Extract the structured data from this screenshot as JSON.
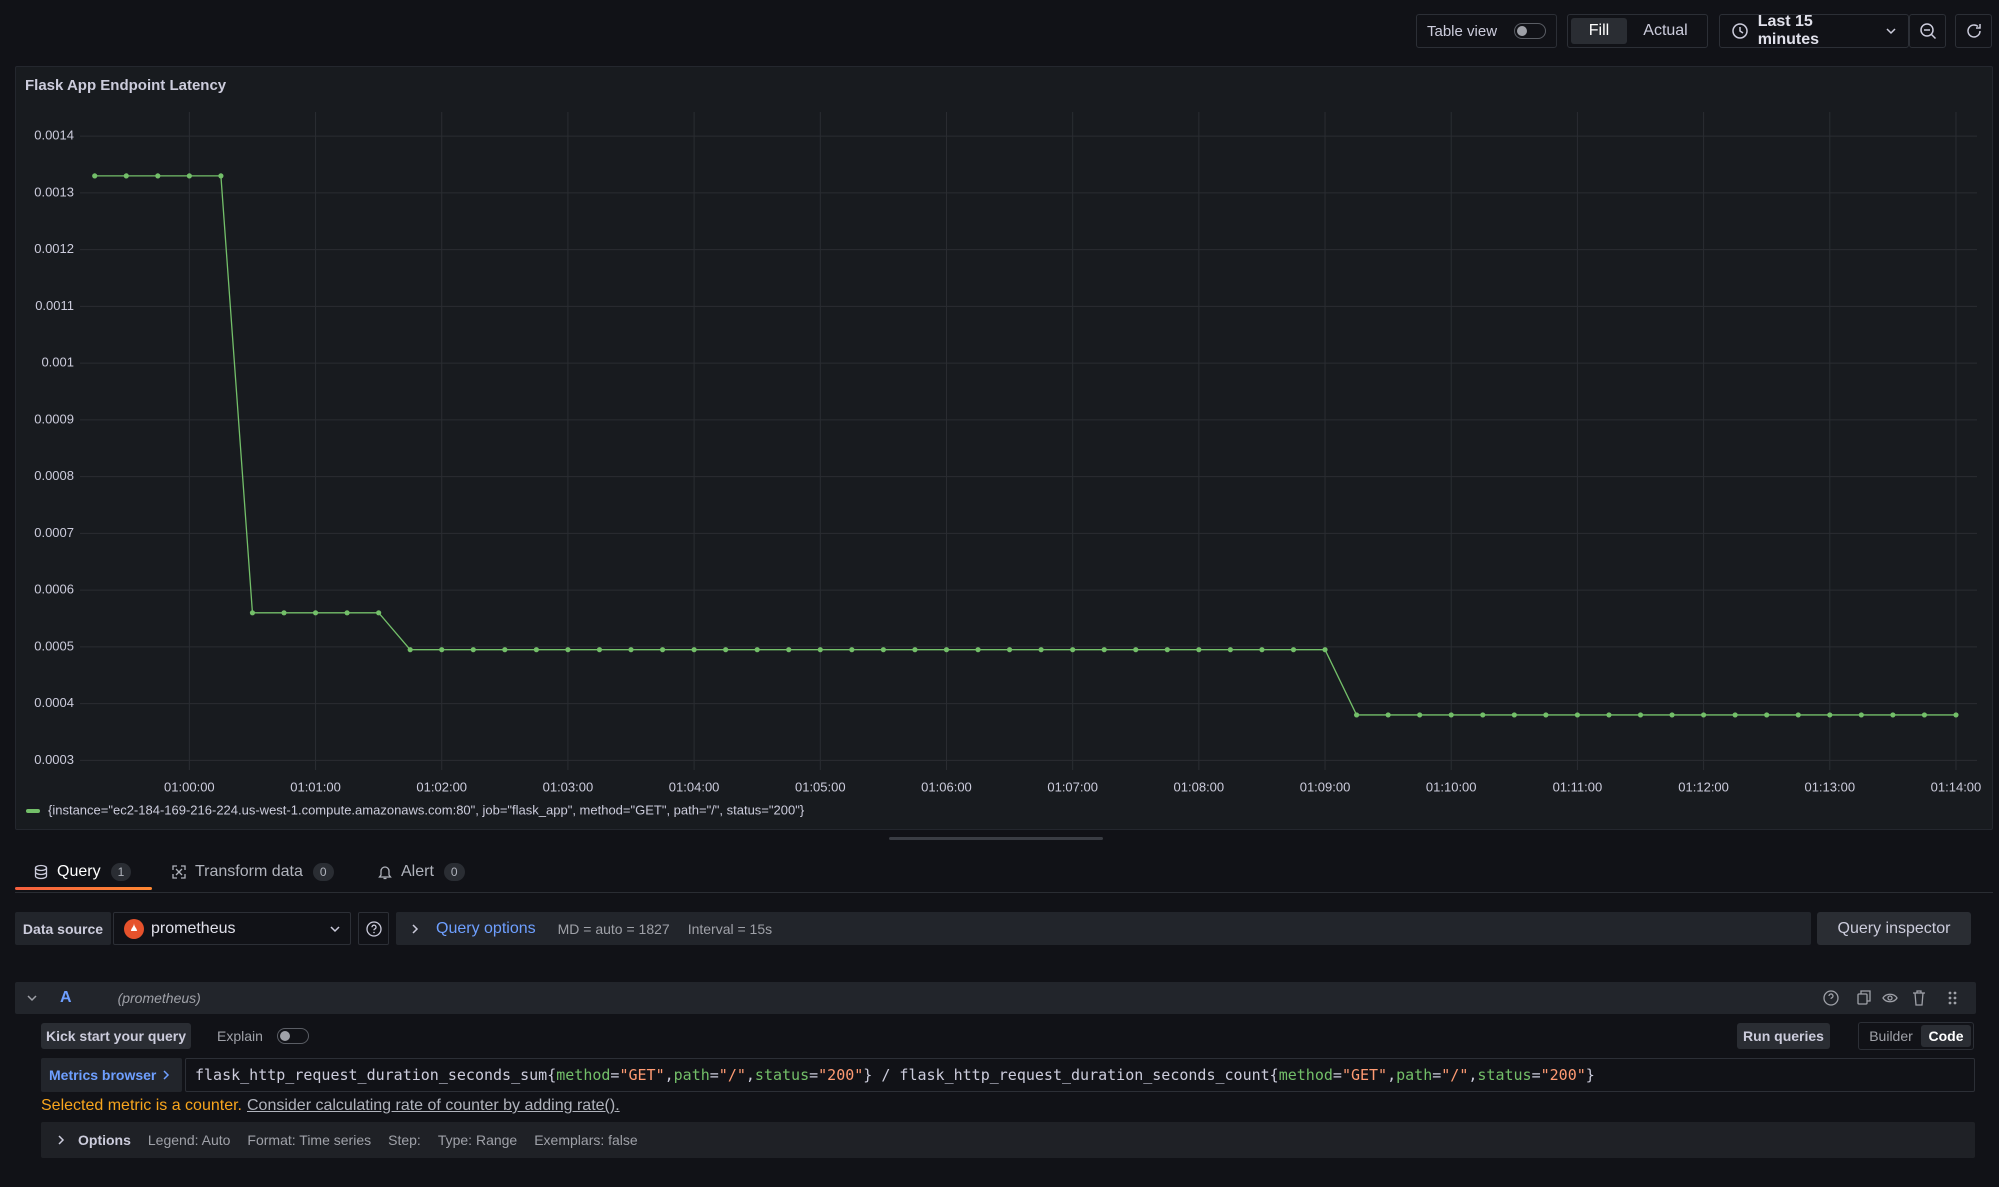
{
  "toolbar": {
    "table_view": "Table view",
    "fill": "Fill",
    "actual": "Actual",
    "time_range": "Last 15 minutes"
  },
  "chart_data": {
    "type": "line",
    "title": "Flask App Endpoint Latency",
    "x": [
      "00:59:15",
      "00:59:30",
      "00:59:45",
      "01:00:00",
      "01:00:15",
      "01:00:30",
      "01:00:45",
      "01:01:00",
      "01:01:15",
      "01:01:30",
      "01:01:45",
      "01:02:00",
      "01:02:15",
      "01:02:30",
      "01:02:45",
      "01:03:00",
      "01:03:15",
      "01:03:30",
      "01:03:45",
      "01:04:00",
      "01:04:15",
      "01:04:30",
      "01:04:45",
      "01:05:00",
      "01:05:15",
      "01:05:30",
      "01:05:45",
      "01:06:00",
      "01:06:15",
      "01:06:30",
      "01:06:45",
      "01:07:00",
      "01:07:15",
      "01:07:30",
      "01:07:45",
      "01:08:00",
      "01:08:15",
      "01:08:30",
      "01:08:45",
      "01:09:00",
      "01:09:15",
      "01:09:30",
      "01:09:45",
      "01:10:00",
      "01:10:15",
      "01:10:30",
      "01:10:45",
      "01:11:00",
      "01:11:15",
      "01:11:30",
      "01:11:45",
      "01:12:00",
      "01:12:15",
      "01:12:30",
      "01:12:45",
      "01:13:00",
      "01:13:15",
      "01:13:30",
      "01:13:45",
      "01:14:00"
    ],
    "series": [
      {
        "name": "{instance=\"ec2-184-169-216-224.us-west-1.compute.amazonaws.com:80\", job=\"flask_app\", method=\"GET\", path=\"/\", status=\"200\"}",
        "color": "#73bf69",
        "values": [
          0.00133,
          0.00133,
          0.00133,
          0.00133,
          0.00133,
          0.00056,
          0.00056,
          0.00056,
          0.00056,
          0.00056,
          0.000495,
          0.000495,
          0.000495,
          0.000495,
          0.000495,
          0.000495,
          0.000495,
          0.000495,
          0.000495,
          0.000495,
          0.000495,
          0.000495,
          0.000495,
          0.000495,
          0.000495,
          0.000495,
          0.000495,
          0.000495,
          0.000495,
          0.000495,
          0.000495,
          0.000495,
          0.000495,
          0.000495,
          0.000495,
          0.000495,
          0.000495,
          0.000495,
          0.000495,
          0.000495,
          0.00038,
          0.00038,
          0.00038,
          0.00038,
          0.00038,
          0.00038,
          0.00038,
          0.00038,
          0.00038,
          0.00038,
          0.00038,
          0.00038,
          0.00038,
          0.00038,
          0.00038,
          0.00038,
          0.00038,
          0.00038,
          0.00038,
          0.00038
        ]
      }
    ],
    "xlim": [
      "00:59:08",
      "01:14:10"
    ],
    "xticks": [
      "01:00:00",
      "01:01:00",
      "01:02:00",
      "01:03:00",
      "01:04:00",
      "01:05:00",
      "01:06:00",
      "01:07:00",
      "01:08:00",
      "01:09:00",
      "01:10:00",
      "01:11:00",
      "01:12:00",
      "01:13:00",
      "01:14:00"
    ],
    "ylim": [
      0.00029,
      0.001425
    ],
    "yticks": [
      0.0003,
      0.0004,
      0.0005,
      0.0006,
      0.0007,
      0.0008,
      0.0009,
      0.001,
      0.0011,
      0.0012,
      0.0013,
      0.0014
    ],
    "grid": true
  },
  "tabs": [
    {
      "label": "Query",
      "count": 1
    },
    {
      "label": "Transform data",
      "count": 0
    },
    {
      "label": "Alert",
      "count": 0
    }
  ],
  "data_source": {
    "label": "Data source",
    "name": "prometheus",
    "query_options": "Query options",
    "md": "MD = auto = 1827",
    "interval": "Interval = 15s",
    "inspector": "Query inspector"
  },
  "query": {
    "ref": "A",
    "datasource": "(prometheus)",
    "kick_start": "Kick start your query",
    "explain": "Explain",
    "run": "Run queries",
    "builder": "Builder",
    "code": "Code",
    "metrics_browser": "Metrics browser",
    "expression": [
      {
        "text": "flask_http_request_duration_seconds_sum{",
        "color": "#ccccdc"
      },
      {
        "text": "method",
        "color": "#73bf69"
      },
      {
        "text": "=",
        "color": "#ccccdc"
      },
      {
        "text": "\"GET\"",
        "color": "#ff9b73"
      },
      {
        "text": ",",
        "color": "#ccccdc"
      },
      {
        "text": "path",
        "color": "#73bf69"
      },
      {
        "text": "=",
        "color": "#ccccdc"
      },
      {
        "text": "\"/\"",
        "color": "#ff9b73"
      },
      {
        "text": ",",
        "color": "#ccccdc"
      },
      {
        "text": "status",
        "color": "#73bf69"
      },
      {
        "text": "=",
        "color": "#ccccdc"
      },
      {
        "text": "\"200\"",
        "color": "#ff9b73"
      },
      {
        "text": "} / flask_http_request_duration_seconds_count{",
        "color": "#ccccdc"
      },
      {
        "text": "method",
        "color": "#73bf69"
      },
      {
        "text": "=",
        "color": "#ccccdc"
      },
      {
        "text": "\"GET\"",
        "color": "#ff9b73"
      },
      {
        "text": ",",
        "color": "#ccccdc"
      },
      {
        "text": "path",
        "color": "#73bf69"
      },
      {
        "text": "=",
        "color": "#ccccdc"
      },
      {
        "text": "\"/\"",
        "color": "#ff9b73"
      },
      {
        "text": ",",
        "color": "#ccccdc"
      },
      {
        "text": "status",
        "color": "#73bf69"
      },
      {
        "text": "=",
        "color": "#ccccdc"
      },
      {
        "text": "\"200\"",
        "color": "#ff9b73"
      },
      {
        "text": "}",
        "color": "#ccccdc"
      }
    ],
    "warning": "Selected metric is a counter.",
    "warning_link": "Consider calculating rate of counter by adding rate().",
    "options": {
      "label": "Options",
      "items": [
        "Legend: Auto",
        "Format: Time series",
        "Step:",
        "Type: Range",
        "Exemplars: false"
      ]
    }
  }
}
